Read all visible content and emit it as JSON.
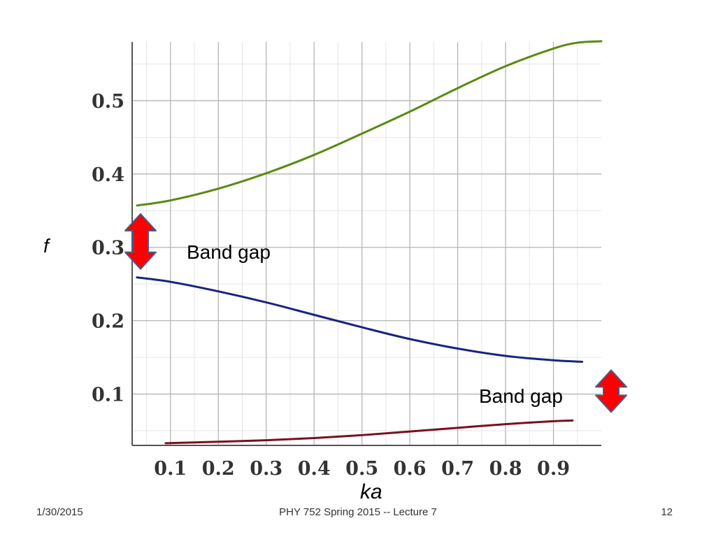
{
  "chart_data": {
    "type": "line",
    "xlabel": "ka",
    "ylabel": "f",
    "xlim": [
      0.02,
      1.0
    ],
    "ylim": [
      0.03,
      0.58
    ],
    "xticks": [
      "0.1",
      "0.2",
      "0.3",
      "0.4",
      "0.5",
      "0.6",
      "0.7",
      "0.8",
      "0.9"
    ],
    "yticks": [
      "0.1",
      "0.2",
      "0.3",
      "0.4",
      "0.5"
    ],
    "grid": true,
    "series": [
      {
        "color": "#5a8a12",
        "x": [
          0.03,
          0.1,
          0.2,
          0.3,
          0.4,
          0.5,
          0.6,
          0.7,
          0.8,
          0.9,
          0.95,
          1.0
        ],
        "y": [
          0.357,
          0.364,
          0.38,
          0.401,
          0.426,
          0.455,
          0.485,
          0.517,
          0.547,
          0.571,
          0.579,
          0.581
        ]
      },
      {
        "color": "#1a237e",
        "x": [
          0.03,
          0.1,
          0.2,
          0.3,
          0.4,
          0.5,
          0.6,
          0.7,
          0.8,
          0.9,
          0.96
        ],
        "y": [
          0.259,
          0.253,
          0.24,
          0.225,
          0.208,
          0.191,
          0.175,
          0.162,
          0.152,
          0.146,
          0.144
        ]
      },
      {
        "color": "#7a1020",
        "x": [
          0.09,
          0.2,
          0.3,
          0.4,
          0.5,
          0.6,
          0.7,
          0.8,
          0.9,
          0.94
        ],
        "y": [
          0.033,
          0.035,
          0.037,
          0.04,
          0.044,
          0.049,
          0.054,
          0.059,
          0.063,
          0.064
        ]
      }
    ],
    "annotations": [
      {
        "text": "Band gap",
        "arrow_from_f": 0.259,
        "arrow_to_f": 0.357
      },
      {
        "text": "Band gap",
        "arrow_from_f": 0.064,
        "arrow_to_f": 0.144
      }
    ],
    "arrow_color": "#ff0000"
  },
  "footer": {
    "date": "1/30/2015",
    "center": "PHY 752  Spring 2015 -- Lecture 7",
    "page": "12"
  }
}
